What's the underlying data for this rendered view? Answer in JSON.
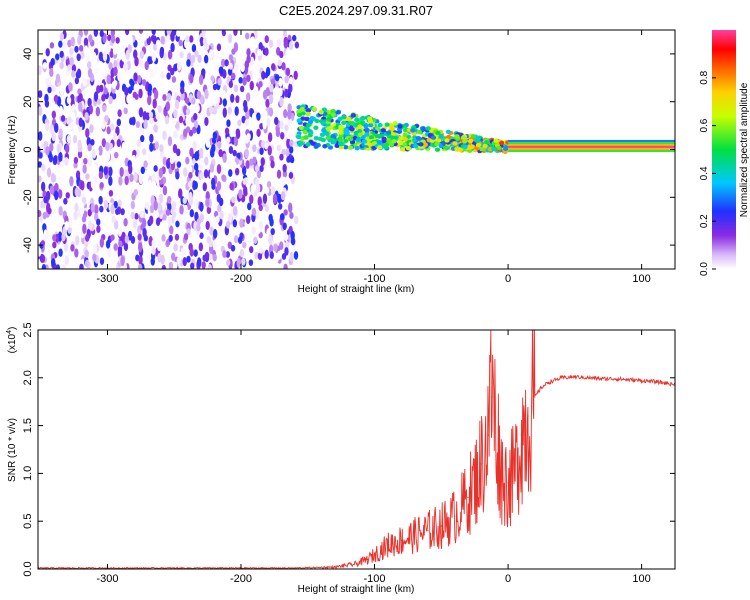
{
  "figure_title": "C2E5.2024.297.09.31.R07",
  "chart_data": [
    {
      "type": "heatmap",
      "title": "C2E5.2024.297.09.31.R07",
      "xlabel": "Height of straight line (km)",
      "ylabel": "Frequency (Hz)",
      "xlim": [
        -352,
        125
      ],
      "ylim": [
        -50,
        50
      ],
      "x_ticks": [
        -300,
        -200,
        -100,
        0,
        100
      ],
      "x_tick_labels": [
        "-300",
        "-200",
        "-100",
        "0",
        "100"
      ],
      "y_ticks": [
        -40,
        -20,
        0,
        20,
        40
      ],
      "y_tick_labels": [
        "-40",
        "-20",
        "0",
        "20",
        "40"
      ],
      "colorbar": {
        "label": "Normalized spectral amplitude",
        "range": [
          0,
          1
        ],
        "ticks": [
          0.0,
          0.2,
          0.4,
          0.6,
          0.8
        ],
        "tick_labels": [
          "0.0",
          "0.2",
          "0.4",
          "0.6",
          "0.8"
        ],
        "colormap": "rainbow (white-violet-blue-cyan-green-yellow-orange-red-magenta)"
      },
      "regions": [
        {
          "description": "broadband noise",
          "x_range": [
            -352,
            -158
          ],
          "freq_range": [
            -50,
            50
          ],
          "amplitude_range": [
            0.0,
            0.25
          ]
        },
        {
          "description": "signal band",
          "x_range": [
            -158,
            0
          ],
          "freq_center": [
            10,
            1
          ],
          "amplitude_range": [
            0.2,
            0.9
          ]
        },
        {
          "description": "strong narrow tone",
          "x_range": [
            0,
            125
          ],
          "freq_range": [
            -1,
            4
          ],
          "amplitude_range": [
            0.3,
            1.0
          ]
        }
      ],
      "grid": false
    },
    {
      "type": "line",
      "xlabel": "Height of straight line (km)",
      "ylabel": "SNR (10 * v/v)",
      "y_multiplier": "(x10",
      "y_multiplier_exponent": "4",
      "y_multiplier_close": ")",
      "xlim": [
        -352,
        125
      ],
      "ylim": [
        0,
        2.5
      ],
      "x_ticks": [
        -300,
        -200,
        -100,
        0,
        100
      ],
      "x_tick_labels": [
        "-300",
        "-200",
        "-100",
        "0",
        "100"
      ],
      "y_ticks": [
        0,
        0.5,
        1.0,
        1.5,
        2.0,
        2.5
      ],
      "y_tick_labels": [
        "0.0",
        "0.5",
        "1.0",
        "1.5",
        "2.0",
        "2.5"
      ],
      "line_color": "#e8312a",
      "series": [
        {
          "x": [
            -352,
            -300,
            -250,
            -200,
            -160,
            -130,
            -115,
            -105,
            -100,
            -90,
            -80,
            -70,
            -60,
            -50,
            -40,
            -30,
            -25,
            -20,
            -15,
            -12,
            -10,
            -5,
            0,
            5,
            10,
            15,
            20,
            25,
            30,
            40,
            50,
            60,
            70,
            80,
            90,
            100,
            110,
            120,
            125
          ],
          "values": [
            0.01,
            0.01,
            0.01,
            0.01,
            0.01,
            0.02,
            0.05,
            0.1,
            0.15,
            0.25,
            0.3,
            0.35,
            0.4,
            0.45,
            0.55,
            0.75,
            0.9,
            1.1,
            1.4,
            1.8,
            1.6,
            1.0,
            0.9,
            1.0,
            1.4,
            1.6,
            1.8,
            1.9,
            1.95,
            2.0,
            2.01,
            2.0,
            1.99,
            1.99,
            1.98,
            1.97,
            1.96,
            1.94,
            1.93
          ],
          "peak": {
            "x": -13,
            "value": 2.5
          }
        }
      ],
      "grid": false
    }
  ]
}
